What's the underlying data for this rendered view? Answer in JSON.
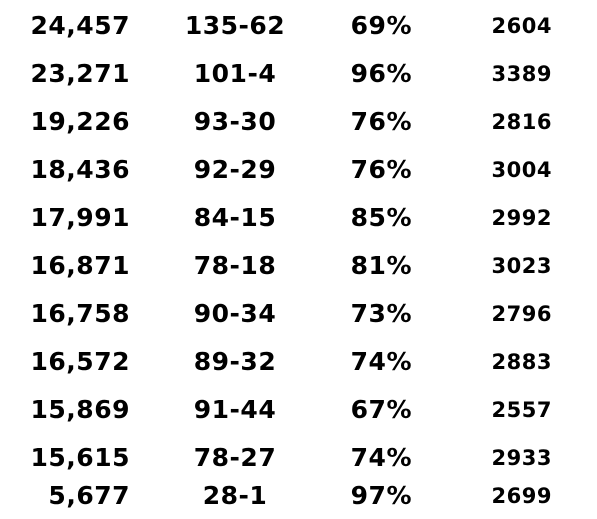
{
  "rows": [
    [
      "24,457",
      "135-62",
      "69%",
      "2604"
    ],
    [
      "23,271",
      "101-4",
      "96%",
      "3389"
    ],
    [
      "19,226",
      "93-30",
      "76%",
      "2816"
    ],
    [
      "18,436",
      "92-29",
      "76%",
      "3004"
    ],
    [
      "17,991",
      "84-15",
      "85%",
      "2992"
    ],
    [
      "16,871",
      "78-18",
      "81%",
      "3023"
    ],
    [
      "16,758",
      "90-34",
      "73%",
      "2796"
    ],
    [
      "16,572",
      "89-32",
      "74%",
      "2883"
    ],
    [
      "15,869",
      "91-44",
      "67%",
      "2557"
    ],
    [
      "15,615",
      "78-27",
      "74%",
      "2933"
    ],
    [
      "5,677",
      "28-1",
      "97%",
      "2699"
    ]
  ],
  "colors": {
    "text": "#000000",
    "background": "#ffffff"
  }
}
